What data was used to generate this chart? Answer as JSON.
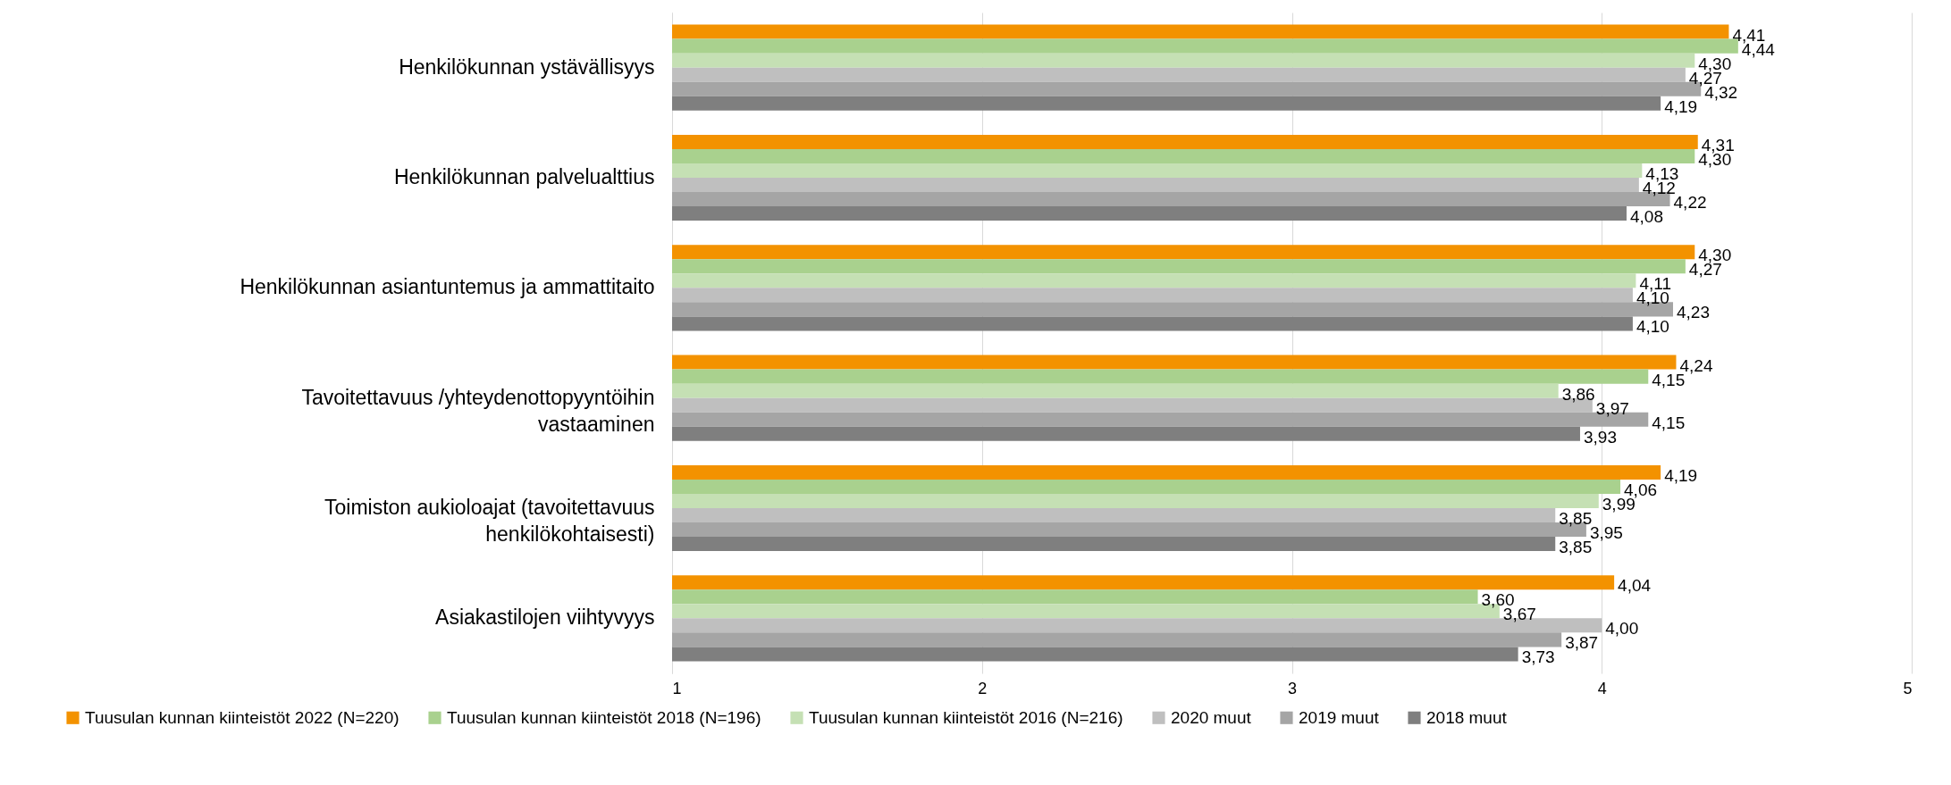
{
  "chart_data": {
    "type": "bar",
    "orientation": "horizontal",
    "categories": [
      "Henkilökunnan ystävällisyys",
      "Henkilökunnan palvelualttius",
      "Henkilökunnan asiantuntemus ja ammattitaito",
      "Tavoitettavuus /yhteydenottopyyntöihin vastaaminen",
      "Toimiston aukioloajat (tavoitettavuus henkilökohtaisesti)",
      "Asiakastilojen viihtyvyys"
    ],
    "series": [
      {
        "name": "Tuusulan kunnan kiinteistöt 2022 (N=220)",
        "color": "#f39200",
        "values": [
          4.41,
          4.31,
          4.3,
          4.24,
          4.19,
          4.04
        ],
        "value_labels": [
          "4,41",
          "4,31",
          "4,30",
          "4,24",
          "4,19",
          "4,04"
        ]
      },
      {
        "name": "Tuusulan kunnan kiinteistöt 2018 (N=196)",
        "color": "#a9d18e",
        "values": [
          4.44,
          4.3,
          4.27,
          4.15,
          4.06,
          3.6
        ],
        "value_labels": [
          "4,44",
          "4,30",
          "4,27",
          "4,15",
          "4,06",
          "3,60"
        ]
      },
      {
        "name": "Tuusulan kunnan kiinteistöt 2016 (N=216)",
        "color": "#c5e0b4",
        "values": [
          4.3,
          4.13,
          4.11,
          3.86,
          3.99,
          3.67
        ],
        "value_labels": [
          "4,30",
          "4,13",
          "4,11",
          "3,86",
          "3,99",
          "3,67"
        ]
      },
      {
        "name": "2020 muut",
        "color": "#bfbfbf",
        "values": [
          4.27,
          4.12,
          4.1,
          3.97,
          3.85,
          4.0
        ],
        "value_labels": [
          "4,27",
          "4,12",
          "4,10",
          "3,97",
          "3,85",
          "4,00"
        ]
      },
      {
        "name": "2019 muut",
        "color": "#a5a5a5",
        "values": [
          4.32,
          4.22,
          4.23,
          4.15,
          3.95,
          3.87
        ],
        "value_labels": [
          "4,32",
          "4,22",
          "4,23",
          "4,15",
          "3,95",
          "3,87"
        ]
      },
      {
        "name": "2018 muut",
        "color": "#7f7f7f",
        "values": [
          4.19,
          4.08,
          4.1,
          3.93,
          3.85,
          3.73
        ],
        "value_labels": [
          "4,19",
          "4,08",
          "4,10",
          "3,93",
          "3,85",
          "3,73"
        ]
      }
    ],
    "xlim": [
      1,
      5
    ],
    "xticks": [
      1,
      2,
      3,
      4,
      5
    ],
    "grid": "x",
    "legend": "bottom"
  }
}
